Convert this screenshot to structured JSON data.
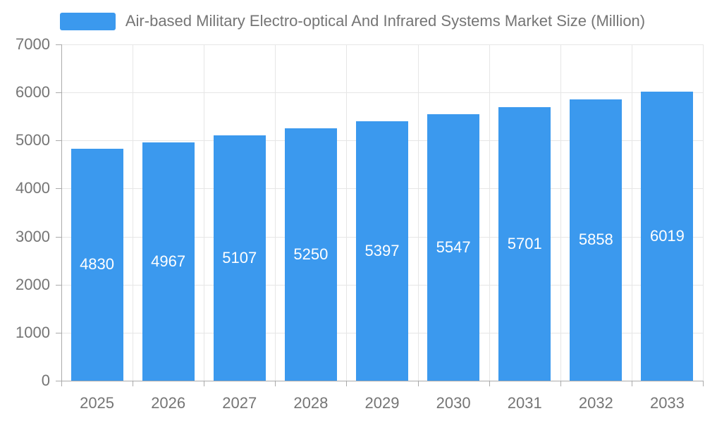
{
  "chart_data": {
    "type": "bar",
    "title": "Air-based Military Electro-optical And Infrared Systems Market Size (Million)",
    "categories": [
      "2025",
      "2026",
      "2027",
      "2028",
      "2029",
      "2030",
      "2031",
      "2032",
      "2033"
    ],
    "values": [
      4830,
      4967,
      5107,
      5250,
      5397,
      5547,
      5701,
      5858,
      6019
    ],
    "xlabel": "",
    "ylabel": "",
    "ylim": [
      0,
      7000
    ],
    "yticks": [
      0,
      1000,
      2000,
      3000,
      4000,
      5000,
      6000,
      7000
    ],
    "grid": true,
    "value_labels_inside_bars": true,
    "legend": {
      "position": "top",
      "label": "Air-based Military Electro-optical And Infrared Systems Market Size (Million)"
    },
    "colors": {
      "bar": "#3B99EE",
      "grid": "#E6E6E6",
      "axis": "#AAAAAA",
      "text": "#757575",
      "value_label": "#FFFFFF",
      "background": "#FFFFFF"
    }
  }
}
